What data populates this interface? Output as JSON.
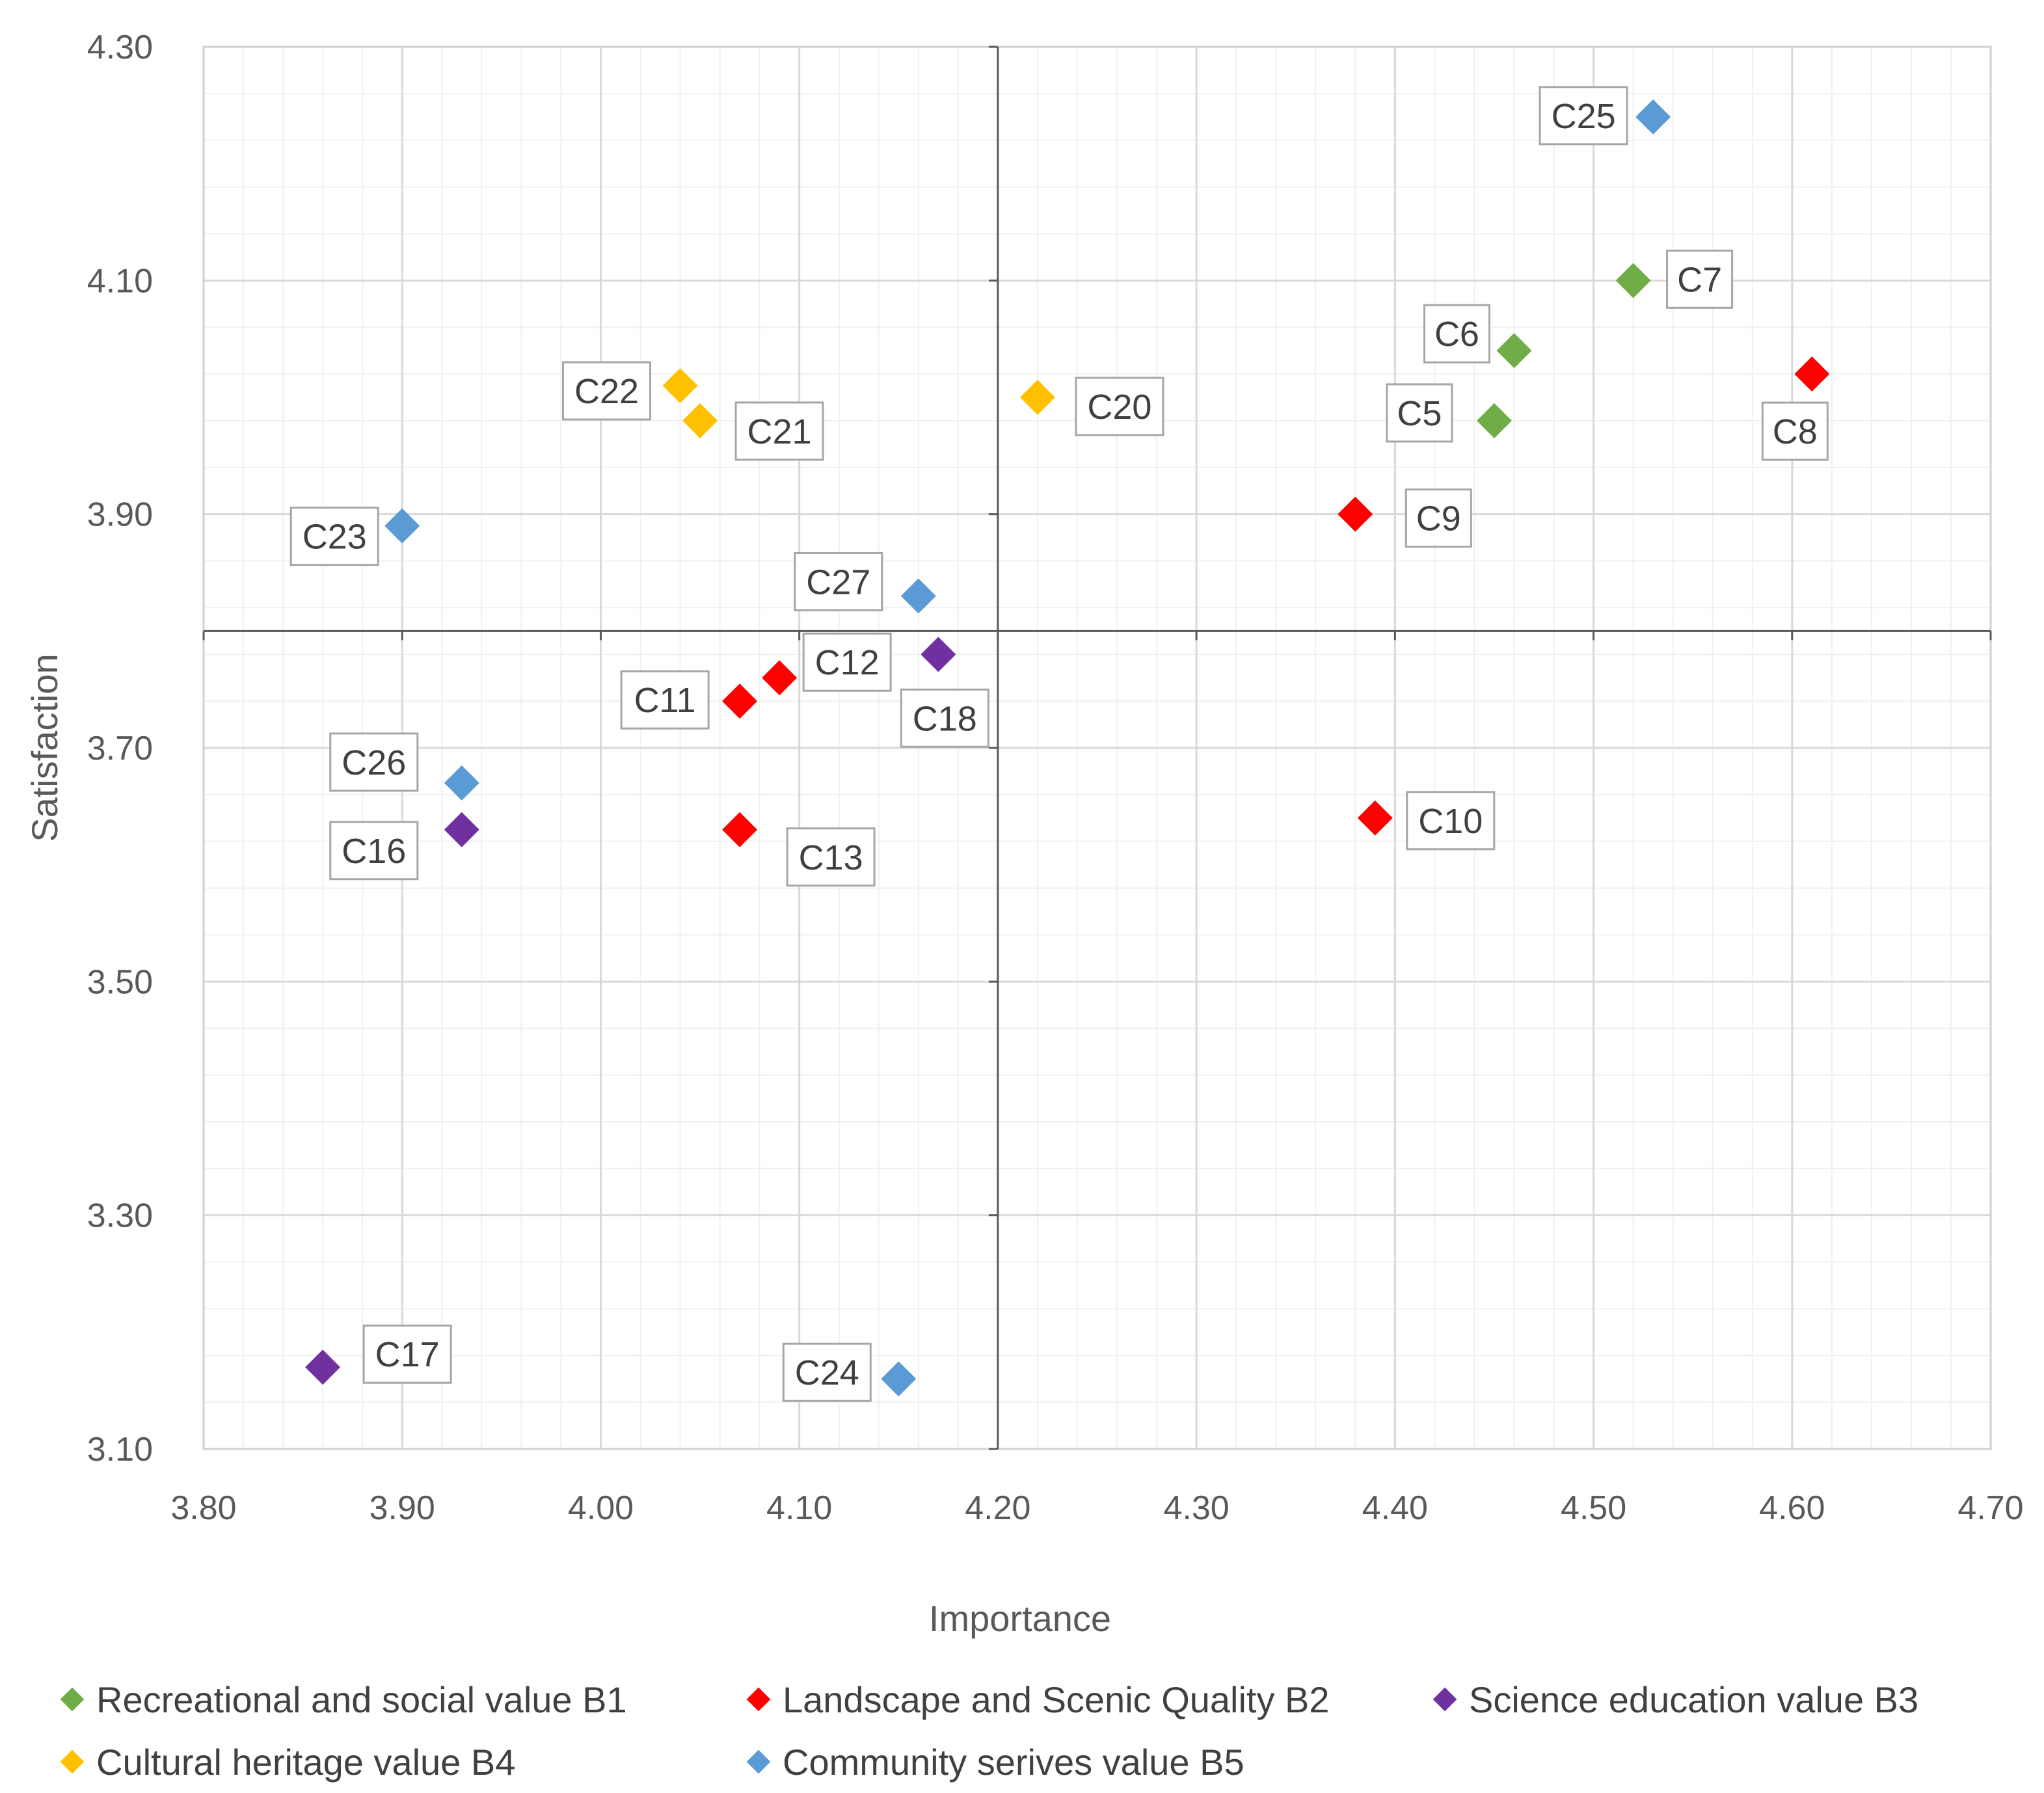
{
  "chart_data": {
    "type": "scatter",
    "xlabel": "Importance",
    "ylabel": "Satisfaction",
    "xlim": [
      3.8,
      4.7
    ],
    "ylim": [
      3.1,
      4.3
    ],
    "x_ticks": [
      "3.80",
      "3.90",
      "4.00",
      "4.10",
      "4.20",
      "4.30",
      "4.40",
      "4.50",
      "4.60",
      "4.70"
    ],
    "y_ticks": [
      "3.10",
      "3.30",
      "3.50",
      "3.70",
      "3.90",
      "4.10",
      "4.30"
    ],
    "quadrant_lines": {
      "x": 4.2,
      "y": 3.8
    },
    "grid": true,
    "legend_position": "bottom",
    "series": [
      {
        "name": "Recreational and social value B1",
        "color": "#70AD47",
        "points": [
          {
            "label": "C5",
            "x": 4.45,
            "y": 3.98
          },
          {
            "label": "C6",
            "x": 4.46,
            "y": 4.04
          },
          {
            "label": "C7",
            "x": 4.52,
            "y": 4.1
          }
        ]
      },
      {
        "name": "Landscape and Scenic Quality B2",
        "color": "#FF0000",
        "points": [
          {
            "label": "C8",
            "x": 4.61,
            "y": 4.02
          },
          {
            "label": "C9",
            "x": 4.38,
            "y": 3.9
          },
          {
            "label": "C10",
            "x": 4.39,
            "y": 3.64
          },
          {
            "label": "C11",
            "x": 4.07,
            "y": 3.74
          },
          {
            "label": "C12",
            "x": 4.09,
            "y": 3.76
          },
          {
            "label": "C13",
            "x": 4.07,
            "y": 3.63
          }
        ]
      },
      {
        "name": "Science education value B3",
        "color": "#7030A0",
        "points": [
          {
            "label": "C16",
            "x": 3.93,
            "y": 3.63
          },
          {
            "label": "C17",
            "x": 3.86,
            "y": 3.17
          },
          {
            "label": "C18",
            "x": 4.17,
            "y": 3.78
          }
        ]
      },
      {
        "name": "Cultural heritage value B4",
        "color": "#FFC000",
        "points": [
          {
            "label": "C20",
            "x": 4.22,
            "y": 4.0
          },
          {
            "label": "C21",
            "x": 4.05,
            "y": 3.98
          },
          {
            "label": "C22",
            "x": 4.04,
            "y": 4.01
          }
        ]
      },
      {
        "name": "Community serives value B5",
        "color": "#5B9BD5",
        "points": [
          {
            "label": "C23",
            "x": 3.9,
            "y": 3.89
          },
          {
            "label": "C24",
            "x": 4.15,
            "y": 3.16
          },
          {
            "label": "C25",
            "x": 4.53,
            "y": 4.24
          },
          {
            "label": "C26",
            "x": 3.93,
            "y": 3.67
          },
          {
            "label": "C27",
            "x": 4.16,
            "y": 3.83
          }
        ]
      }
    ]
  }
}
